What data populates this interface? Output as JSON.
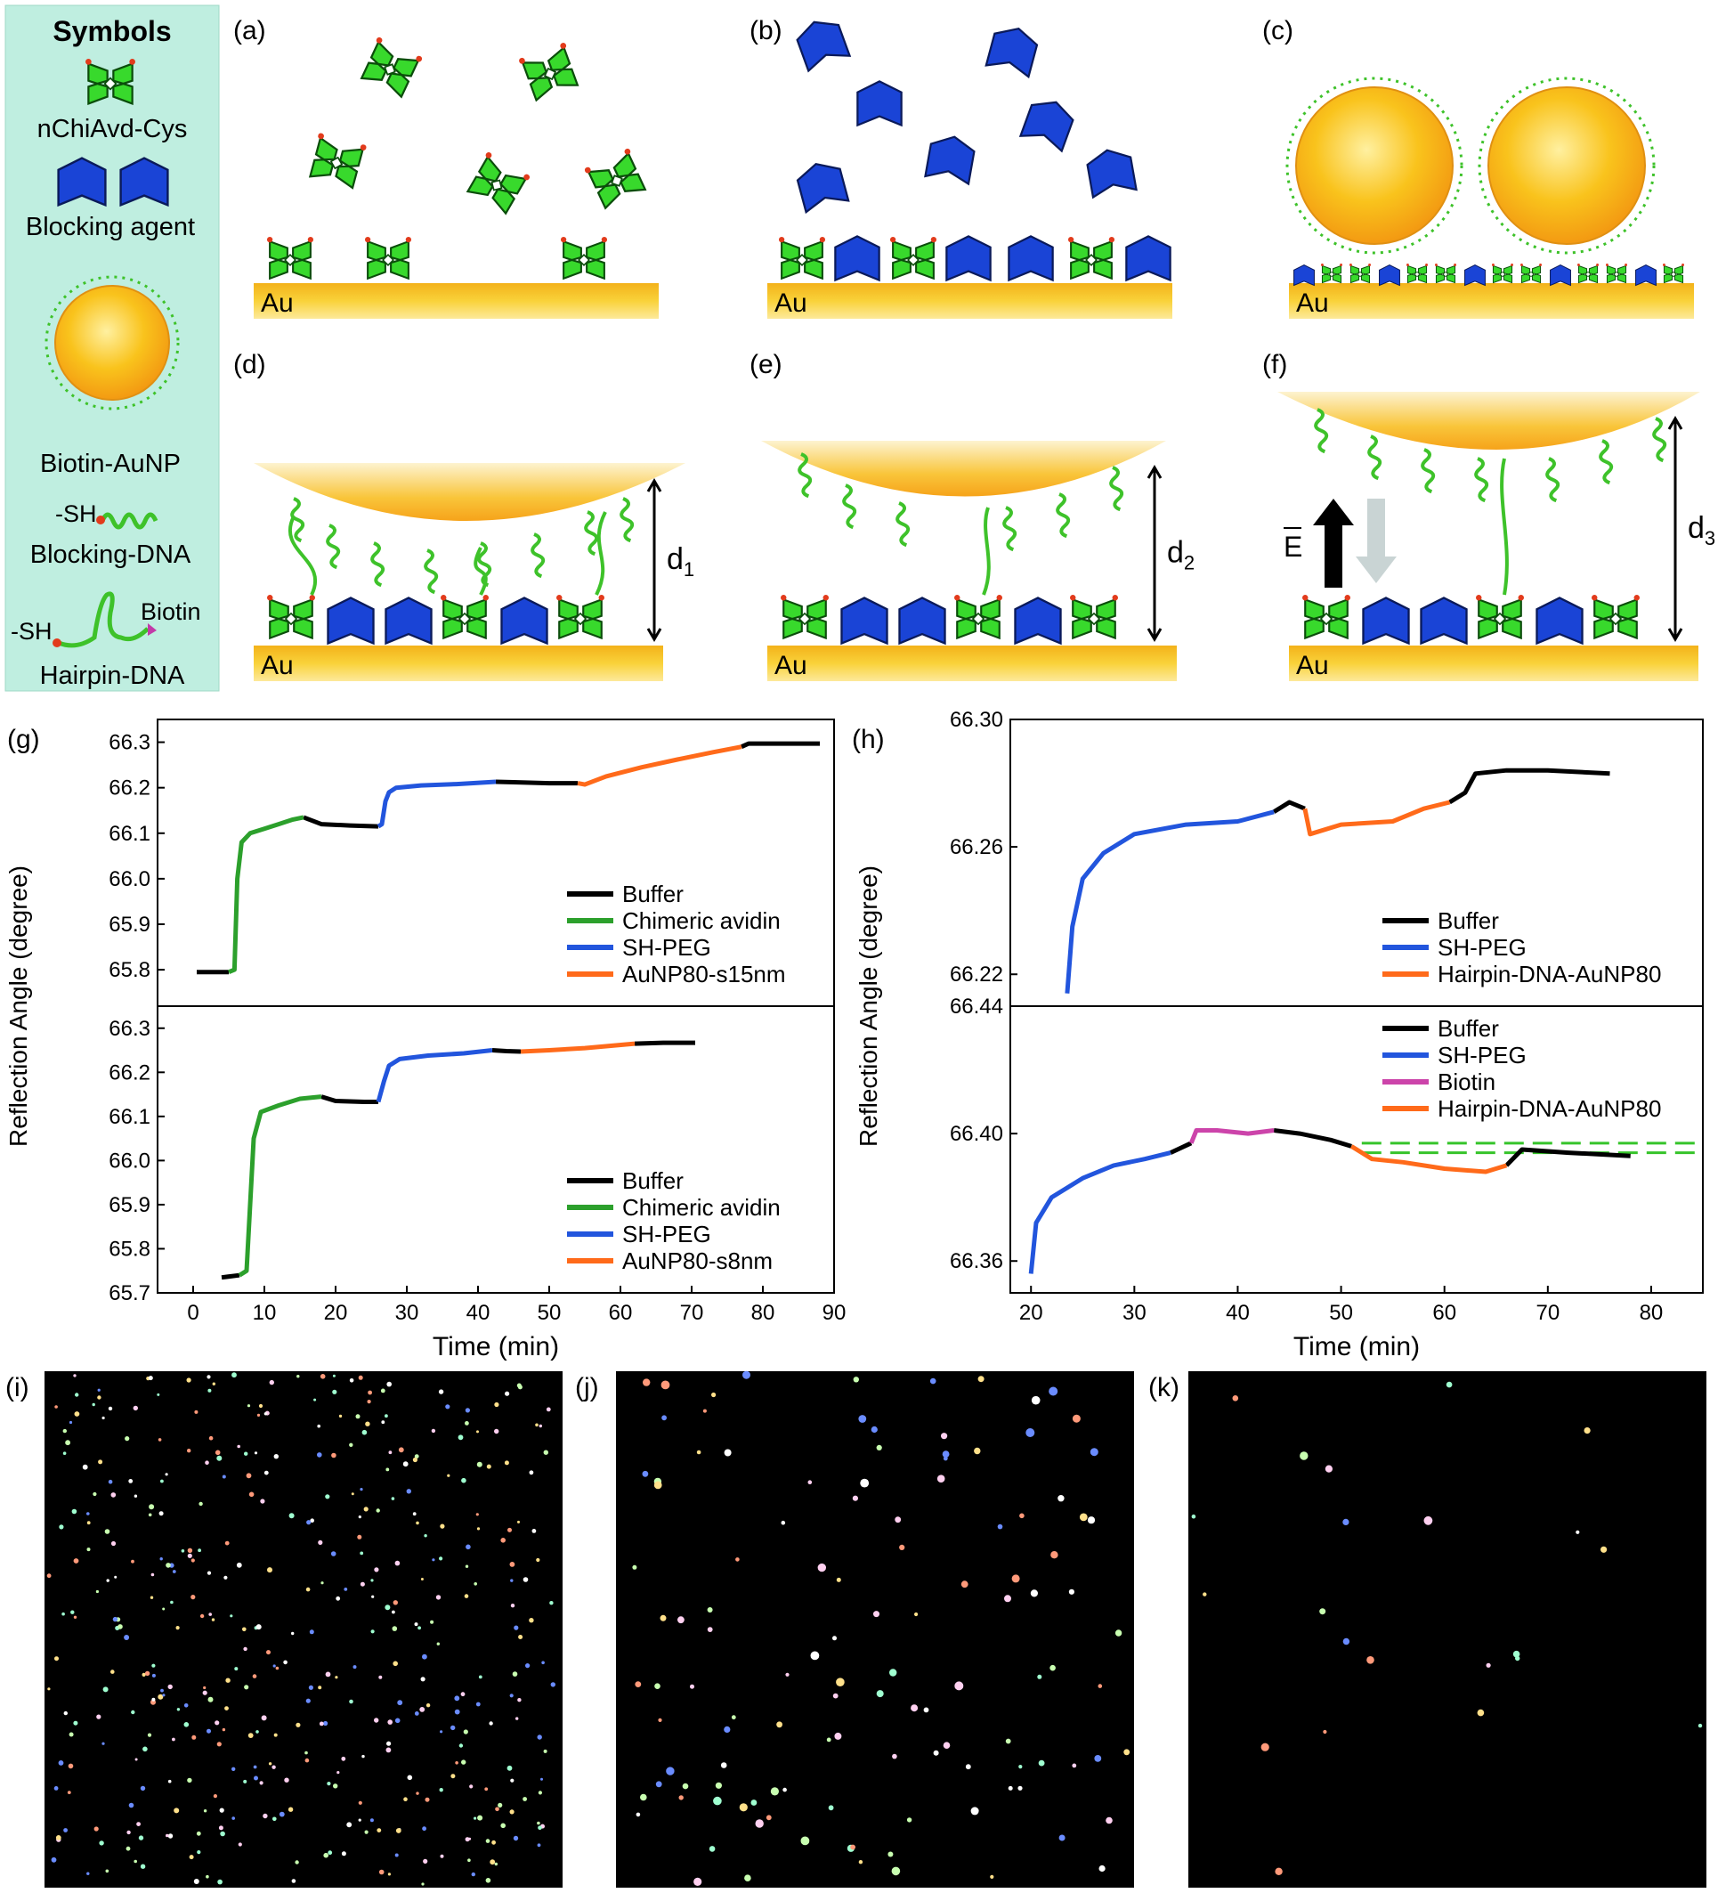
{
  "figure": {
    "symbols_panel": {
      "title": "Symbols",
      "items": [
        "nChiAvd-Cys",
        "Blocking agent",
        "Biotin-AuNP",
        "Blocking-DNA",
        "Hairpin-DNA"
      ],
      "thiol_label": "-SH",
      "biotin_label": "Biotin"
    },
    "panel_labels": [
      "(a)",
      "(b)",
      "(c)",
      "(d)",
      "(e)",
      "(f)",
      "(g)",
      "(h)",
      "(i)",
      "(j)",
      "(k)"
    ],
    "substrate_label": "Au",
    "distance_labels": [
      "d",
      "d",
      "d"
    ],
    "distance_subscripts": [
      "1",
      "2",
      "3"
    ],
    "field_label": "E",
    "colors": {
      "symbols_bg": "#bfeee0",
      "gold_substrate": "#f7c51c",
      "avidin_green": "#37d42a",
      "blocking_blue": "#1a44d6",
      "nanoparticle": "#f7a81b",
      "dna_green": "#3ec22a"
    }
  },
  "chart_data": [
    {
      "type": "line",
      "panel": "(g) top",
      "ylabel": "Reflection Angle (degree)",
      "xlabel": "Time (min)",
      "xlim": [
        -5,
        90
      ],
      "ylim": [
        65.72,
        66.35
      ],
      "yticks": [
        "65.8",
        "65.9",
        "66.0",
        "66.1",
        "66.2",
        "66.3"
      ],
      "legend": [
        "Buffer",
        "Chimeric avidin",
        "SH-PEG",
        "AuNP80-s15nm"
      ],
      "legend_position": "bottom-right",
      "series": [
        {
          "name": "Buffer",
          "color": "#000000",
          "segments": [
            [
              [
                0.5,
                65.795
              ],
              [
                5,
                65.795
              ]
            ],
            [
              [
                15.5,
                66.135
              ],
              [
                18,
                66.12
              ],
              [
                22,
                66.117
              ],
              [
                26,
                66.115
              ]
            ],
            [
              [
                42.5,
                66.213
              ],
              [
                45,
                66.212
              ],
              [
                50,
                66.21
              ],
              [
                54,
                66.21
              ]
            ],
            [
              [
                77,
                66.29
              ],
              [
                78,
                66.297
              ],
              [
                83,
                66.297
              ],
              [
                88,
                66.297
              ]
            ]
          ]
        },
        {
          "name": "Chimeric avidin",
          "color": "#2ca02c",
          "segments": [
            [
              [
                5,
                65.795
              ],
              [
                5.8,
                65.8
              ],
              [
                6.2,
                66.0
              ],
              [
                6.8,
                66.08
              ],
              [
                8,
                66.1
              ],
              [
                10,
                66.11
              ],
              [
                12,
                66.12
              ],
              [
                14,
                66.13
              ],
              [
                15.5,
                66.135
              ]
            ]
          ]
        },
        {
          "name": "SH-PEG",
          "color": "#2255dd",
          "segments": [
            [
              [
                26,
                66.115
              ],
              [
                26.5,
                66.12
              ],
              [
                27,
                66.17
              ],
              [
                27.5,
                66.19
              ],
              [
                28.5,
                66.2
              ],
              [
                32,
                66.205
              ],
              [
                37,
                66.208
              ],
              [
                42.5,
                66.213
              ]
            ]
          ]
        },
        {
          "name": "AuNP80-s15nm",
          "color": "#ff6a1a",
          "segments": [
            [
              [
                54,
                66.21
              ],
              [
                55,
                66.207
              ],
              [
                58,
                66.225
              ],
              [
                63,
                66.245
              ],
              [
                68,
                66.262
              ],
              [
                73,
                66.278
              ],
              [
                77,
                66.29
              ]
            ]
          ]
        }
      ]
    },
    {
      "type": "line",
      "panel": "(g) bottom",
      "ylabel": "Reflection Angle (degree)",
      "xlabel": "Time (min)",
      "xlim": [
        -5,
        90
      ],
      "ylim": [
        65.7,
        66.35
      ],
      "yticks": [
        "65.7",
        "65.8",
        "65.9",
        "66.0",
        "66.1",
        "66.2",
        "66.3"
      ],
      "xticks": [
        "0",
        "10",
        "20",
        "30",
        "40",
        "50",
        "60",
        "70",
        "80",
        "90"
      ],
      "legend": [
        "Buffer",
        "Chimeric avidin",
        "SH-PEG",
        "AuNP80-s8nm"
      ],
      "legend_position": "bottom-right",
      "series": [
        {
          "name": "Buffer",
          "color": "#000000",
          "segments": [
            [
              [
                4,
                65.735
              ],
              [
                6.5,
                65.74
              ]
            ],
            [
              [
                18,
                66.145
              ],
              [
                20,
                66.135
              ],
              [
                24,
                66.133
              ],
              [
                26,
                66.133
              ]
            ],
            [
              [
                42,
                66.25
              ],
              [
                44,
                66.248
              ],
              [
                46,
                66.247
              ]
            ],
            [
              [
                62,
                66.265
              ],
              [
                66,
                66.267
              ],
              [
                70.5,
                66.267
              ]
            ]
          ]
        },
        {
          "name": "Chimeric avidin",
          "color": "#2ca02c",
          "segments": [
            [
              [
                6.5,
                65.74
              ],
              [
                7.5,
                65.75
              ],
              [
                8.5,
                66.05
              ],
              [
                9.5,
                66.11
              ],
              [
                12,
                66.125
              ],
              [
                15,
                66.14
              ],
              [
                18,
                66.145
              ]
            ]
          ]
        },
        {
          "name": "SH-PEG",
          "color": "#2255dd",
          "segments": [
            [
              [
                26,
                66.133
              ],
              [
                26.8,
                66.18
              ],
              [
                27.5,
                66.215
              ],
              [
                29,
                66.23
              ],
              [
                33,
                66.238
              ],
              [
                38,
                66.243
              ],
              [
                42,
                66.25
              ]
            ]
          ]
        },
        {
          "name": "AuNP80-s8nm",
          "color": "#ff6a1a",
          "segments": [
            [
              [
                46,
                66.247
              ],
              [
                50,
                66.25
              ],
              [
                55,
                66.255
              ],
              [
                62,
                66.265
              ]
            ]
          ]
        }
      ]
    },
    {
      "type": "line",
      "panel": "(h) top",
      "ylabel": "Reflection Angle (degree)",
      "xlabel": "Time (min)",
      "xlim": [
        18,
        85
      ],
      "ylim": [
        66.21,
        66.3
      ],
      "yticks": [
        "66.22",
        "66.26",
        "66.30"
      ],
      "legend": [
        "Buffer",
        "SH-PEG",
        "Hairpin-DNA-AuNP80"
      ],
      "legend_position": "bottom-right",
      "series": [
        {
          "name": "Buffer",
          "color": "#000000",
          "segments": [
            [
              [
                43.5,
                66.271
              ],
              [
                45,
                66.274
              ],
              [
                46.5,
                66.272
              ]
            ],
            [
              [
                60.5,
                66.274
              ],
              [
                62,
                66.277
              ],
              [
                63,
                66.283
              ],
              [
                66,
                66.284
              ],
              [
                70,
                66.284
              ],
              [
                76,
                66.283
              ]
            ]
          ]
        },
        {
          "name": "SH-PEG",
          "color": "#2255dd",
          "segments": [
            [
              [
                23.5,
                66.214
              ],
              [
                24,
                66.235
              ],
              [
                25,
                66.25
              ],
              [
                27,
                66.258
              ],
              [
                30,
                66.264
              ],
              [
                35,
                66.267
              ],
              [
                40,
                66.268
              ],
              [
                43.5,
                66.271
              ]
            ]
          ]
        },
        {
          "name": "Hairpin-DNA-AuNP80",
          "color": "#ff6a1a",
          "segments": [
            [
              [
                46.5,
                66.272
              ],
              [
                47,
                66.264
              ],
              [
                50,
                66.267
              ],
              [
                55,
                66.268
              ],
              [
                58,
                66.272
              ],
              [
                60.5,
                66.274
              ]
            ]
          ]
        }
      ]
    },
    {
      "type": "line",
      "panel": "(h) bottom",
      "ylabel": "Reflection Angle (degree)",
      "xlabel": "Time (min)",
      "xlim": [
        18,
        85
      ],
      "ylim": [
        66.35,
        66.44
      ],
      "yticks": [
        "66.36",
        "66.40",
        "66.44"
      ],
      "xticks": [
        "20",
        "30",
        "40",
        "50",
        "60",
        "70",
        "80"
      ],
      "legend": [
        "Buffer",
        "SH-PEG",
        "Biotin",
        "Hairpin-DNA-AuNP80"
      ],
      "legend_position": "top-right",
      "reference_lines": [
        66.397,
        66.394
      ],
      "series": [
        {
          "name": "Buffer",
          "color": "#000000",
          "segments": [
            [
              [
                33.5,
                66.394
              ],
              [
                35.5,
                66.397
              ]
            ],
            [
              [
                43.5,
                66.401
              ],
              [
                46,
                66.4
              ],
              [
                49,
                66.398
              ],
              [
                51,
                66.396
              ]
            ],
            [
              [
                66,
                66.39
              ],
              [
                67.5,
                66.395
              ],
              [
                72,
                66.394
              ],
              [
                78,
                66.393
              ]
            ]
          ]
        },
        {
          "name": "SH-PEG",
          "color": "#2255dd",
          "segments": [
            [
              [
                20,
                66.356
              ],
              [
                20.5,
                66.372
              ],
              [
                22,
                66.38
              ],
              [
                25,
                66.386
              ],
              [
                28,
                66.39
              ],
              [
                31,
                66.392
              ],
              [
                33.5,
                66.394
              ]
            ]
          ]
        },
        {
          "name": "Biotin",
          "color": "#cc44aa",
          "segments": [
            [
              [
                35.5,
                66.397
              ],
              [
                36,
                66.401
              ],
              [
                38,
                66.401
              ],
              [
                41,
                66.4
              ],
              [
                43.5,
                66.401
              ]
            ]
          ]
        },
        {
          "name": "Hairpin-DNA-AuNP80",
          "color": "#ff6a1a",
          "segments": [
            [
              [
                51,
                66.396
              ],
              [
                53,
                66.392
              ],
              [
                56,
                66.391
              ],
              [
                60,
                66.389
              ],
              [
                64,
                66.388
              ],
              [
                66,
                66.39
              ]
            ]
          ]
        }
      ]
    }
  ]
}
